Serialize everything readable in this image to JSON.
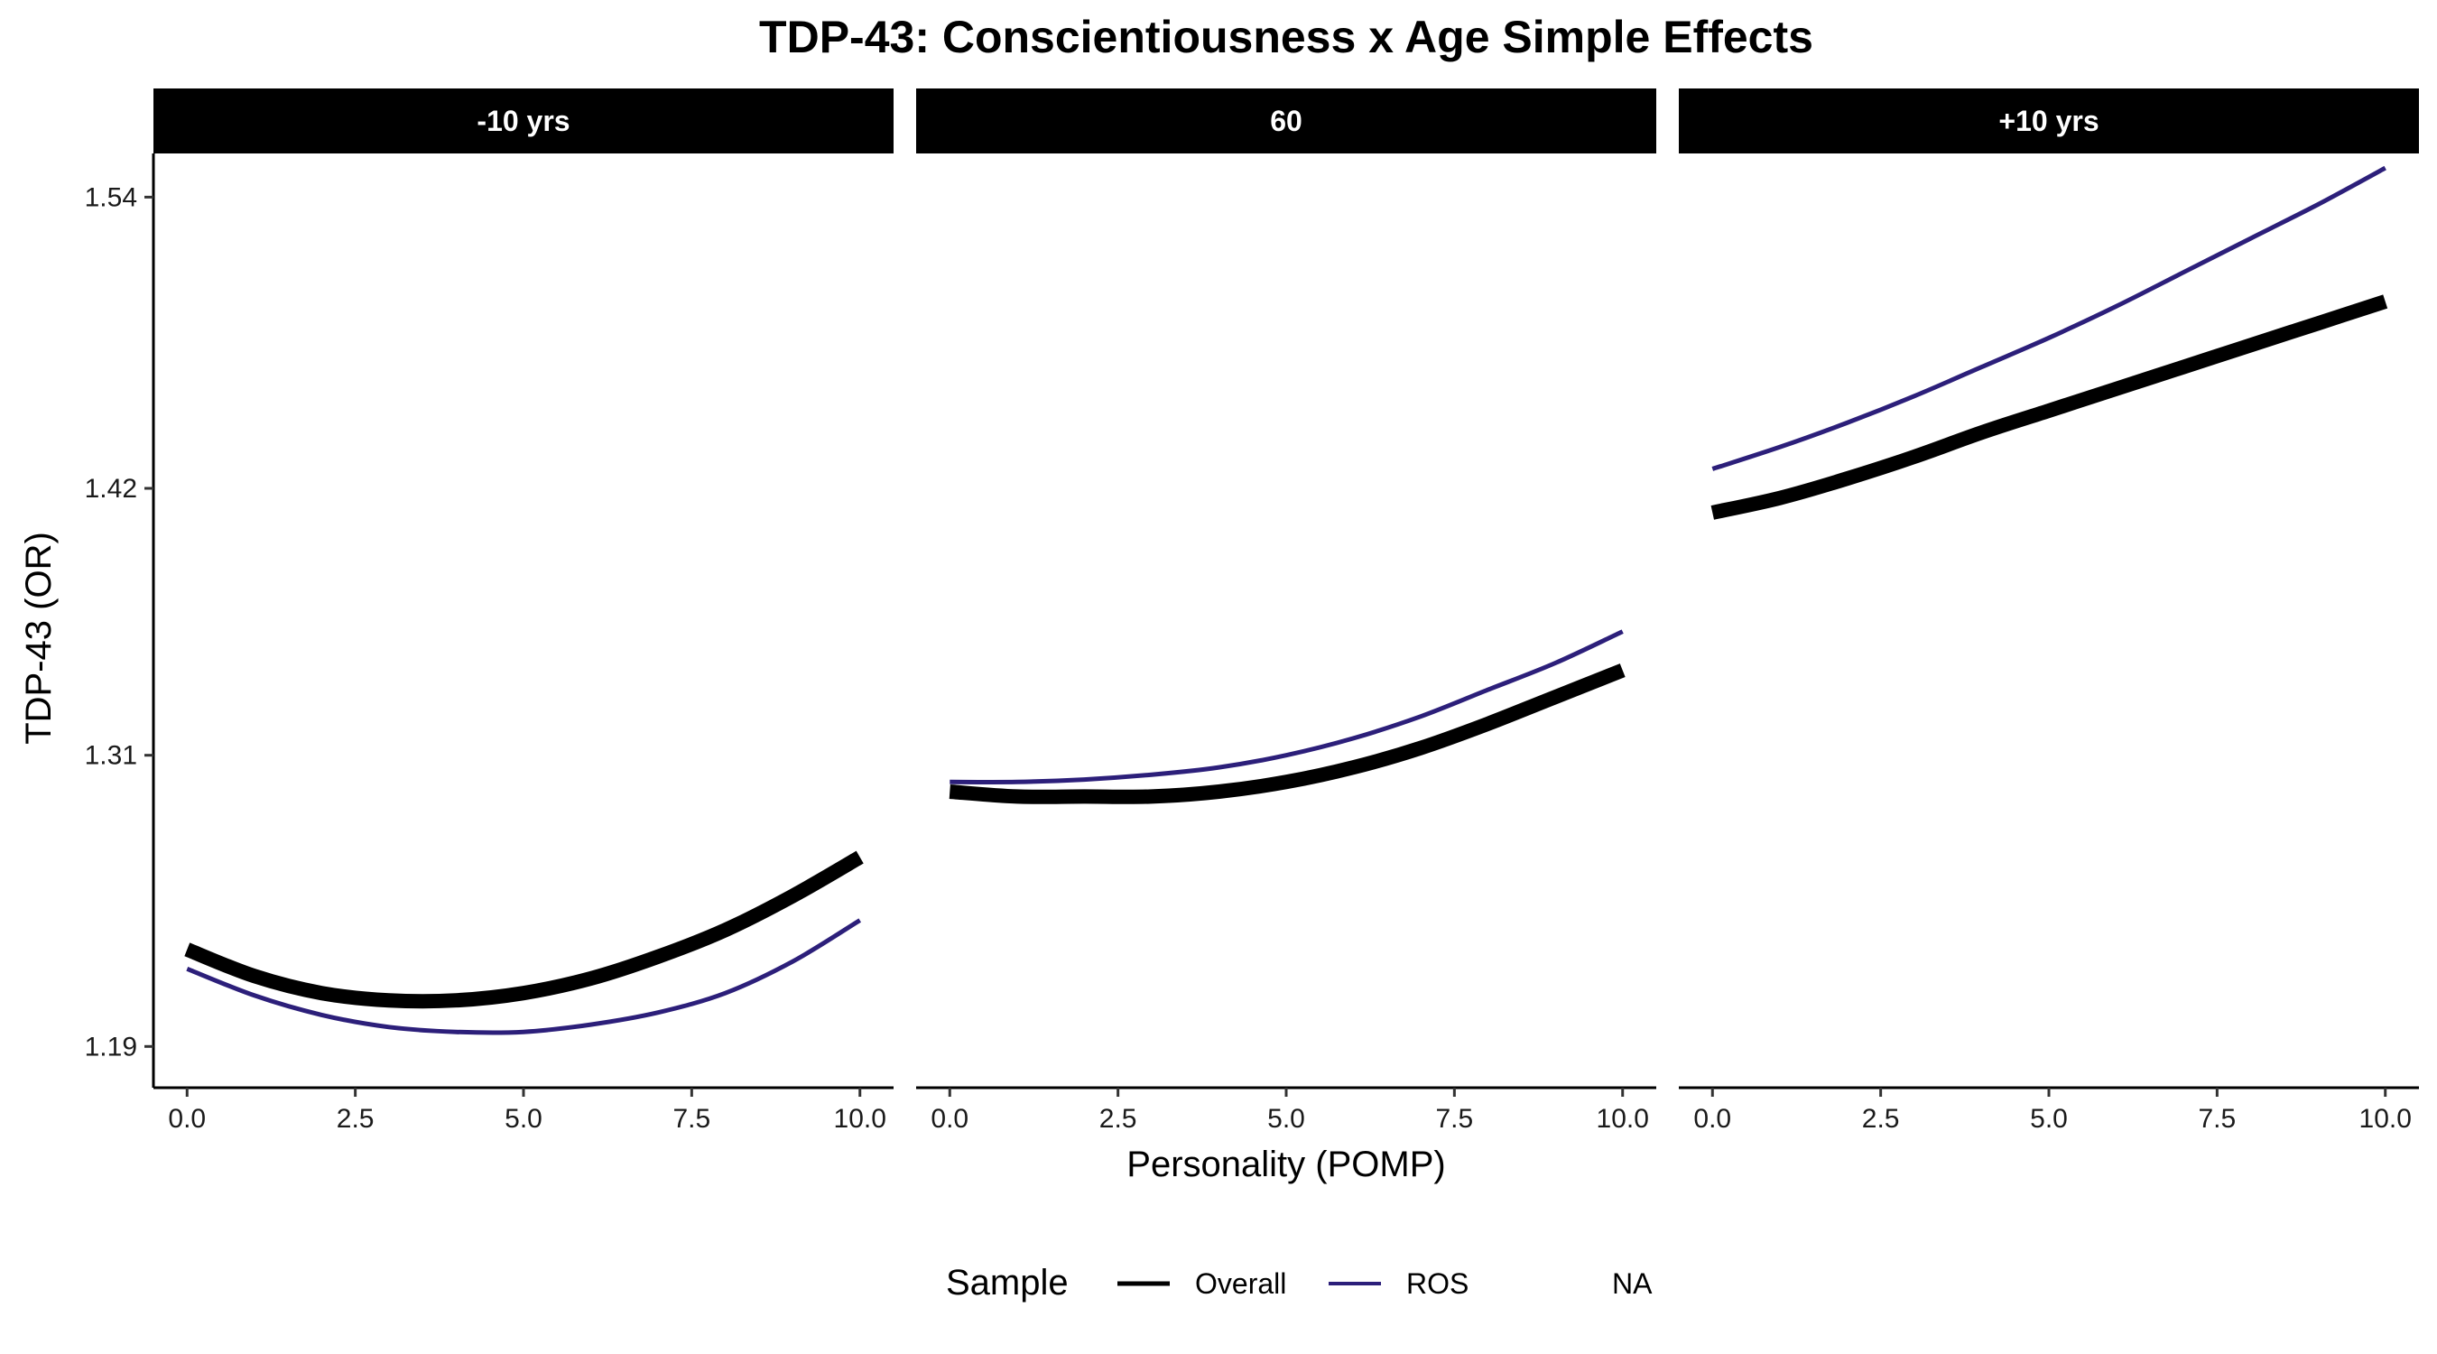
{
  "chart_data": {
    "type": "line",
    "title": "TDP-43: Conscientiousness x Age Simple Effects",
    "xlabel": "Personality (POMP)",
    "ylabel": "TDP-43 (OR)",
    "xlim": [
      -0.5,
      10.5
    ],
    "ylim": [
      1.173,
      1.558
    ],
    "x_ticks": [
      0,
      2.5,
      5,
      7.5,
      10
    ],
    "x_tick_labels": [
      "0.0",
      "2.5",
      "5.0",
      "7.5",
      "10.0"
    ],
    "y_ticks": [
      1.19,
      1.31,
      1.42,
      1.54
    ],
    "y_tick_labels": [
      "1.19",
      "1.31",
      "1.42",
      "1.54"
    ],
    "grid": false,
    "legend": {
      "title": "Sample",
      "position": "bottom",
      "entries": [
        {
          "label": "Overall",
          "color": "#000000"
        },
        {
          "label": "ROS",
          "color": "#2c1f7a"
        },
        {
          "label": "NA",
          "color": ""
        }
      ]
    },
    "colors": {
      "Overall": "#000000",
      "ROS": "#2c1f7a",
      "strip": "#000000"
    },
    "x": [
      0,
      1,
      2,
      3,
      4,
      5,
      6,
      7,
      8,
      9,
      10
    ],
    "panels": [
      {
        "label": "-10 yrs",
        "series": [
          {
            "name": "Overall",
            "values": [
              1.23,
              1.219,
              1.212,
              1.209,
              1.209,
              1.212,
              1.218,
              1.227,
              1.238,
              1.252,
              1.268
            ]
          },
          {
            "name": "ROS",
            "values": [
              1.222,
              1.211,
              1.203,
              1.198,
              1.196,
              1.196,
              1.199,
              1.204,
              1.212,
              1.225,
              1.242
            ]
          }
        ]
      },
      {
        "label": "60",
        "series": [
          {
            "name": "Overall",
            "values": [
              1.295,
              1.293,
              1.293,
              1.293,
              1.295,
              1.299,
              1.305,
              1.313,
              1.323,
              1.334,
              1.345
            ]
          },
          {
            "name": "ROS",
            "values": [
              1.299,
              1.299,
              1.3,
              1.302,
              1.305,
              1.31,
              1.317,
              1.326,
              1.337,
              1.348,
              1.361
            ]
          }
        ]
      },
      {
        "label": "+10 yrs",
        "series": [
          {
            "name": "Overall",
            "values": [
              1.41,
              1.416,
              1.424,
              1.433,
              1.443,
              1.452,
              1.461,
              1.47,
              1.479,
              1.488,
              1.497
            ]
          },
          {
            "name": "ROS",
            "values": [
              1.428,
              1.437,
              1.447,
              1.458,
              1.47,
              1.482,
              1.495,
              1.509,
              1.523,
              1.537,
              1.552
            ]
          }
        ]
      }
    ]
  }
}
